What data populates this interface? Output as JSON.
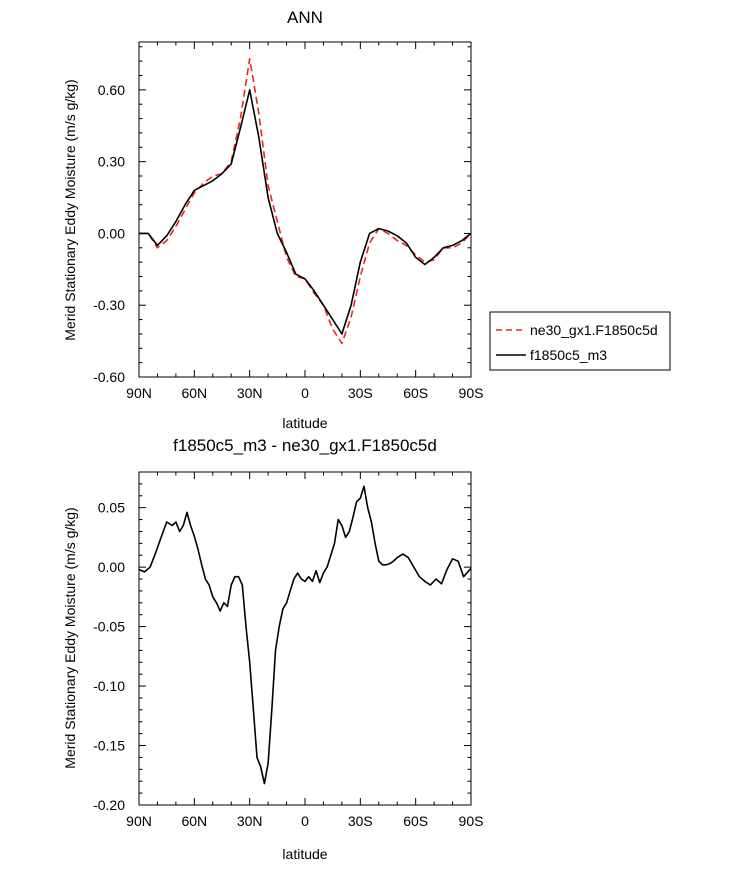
{
  "chart_data": [
    {
      "type": "line",
      "title": "ANN",
      "xlabel": "latitude",
      "ylabel": "Merid Stationary Eddy Moisture (m/s g/kg)",
      "x_ticks": [
        "90N",
        "60N",
        "30N",
        "0",
        "30S",
        "60S",
        "90S"
      ],
      "y_ticks": [
        "0.60",
        "0.30",
        "0.00",
        "-0.30",
        "-0.60"
      ],
      "xlim": [
        90,
        -90
      ],
      "ylim": [
        -0.6,
        0.8
      ],
      "x": [
        90,
        85,
        80,
        75,
        70,
        65,
        60,
        55,
        50,
        45,
        40,
        35,
        30,
        25,
        20,
        15,
        10,
        5,
        0,
        -5,
        -10,
        -15,
        -20,
        -25,
        -30,
        -35,
        -40,
        -45,
        -50,
        -55,
        -60,
        -65,
        -70,
        -75,
        -80,
        -85,
        -90
      ],
      "series": [
        {
          "name": "ne30_gx1.F1850c5d",
          "color": "#e8261f",
          "dash": "dashed",
          "values": [
            0.0,
            0.0,
            -0.06,
            -0.03,
            0.03,
            0.1,
            0.17,
            0.21,
            0.24,
            0.25,
            0.3,
            0.48,
            0.73,
            0.5,
            0.2,
            0.05,
            -0.1,
            -0.18,
            -0.19,
            -0.25,
            -0.3,
            -0.4,
            -0.46,
            -0.35,
            -0.18,
            -0.04,
            0.02,
            0.0,
            -0.03,
            -0.05,
            -0.09,
            -0.12,
            -0.11,
            -0.06,
            -0.06,
            -0.04,
            0.0
          ]
        },
        {
          "name": "f1850c5_m3",
          "color": "#000000",
          "dash": "solid",
          "values": [
            0.0,
            0.0,
            -0.05,
            -0.01,
            0.05,
            0.12,
            0.18,
            0.2,
            0.22,
            0.25,
            0.29,
            0.44,
            0.6,
            0.4,
            0.15,
            0.0,
            -0.08,
            -0.17,
            -0.19,
            -0.24,
            -0.3,
            -0.36,
            -0.42,
            -0.3,
            -0.12,
            0.0,
            0.02,
            0.01,
            -0.01,
            -0.04,
            -0.1,
            -0.13,
            -0.1,
            -0.06,
            -0.05,
            -0.03,
            0.0
          ]
        }
      ],
      "legend": "right"
    },
    {
      "type": "line",
      "title": "f1850c5_m3 - ne30_gx1.F1850c5d",
      "xlabel": "latitude",
      "ylabel": "Merid Stationary Eddy Moisture (m/s g/kg)",
      "x_ticks": [
        "90N",
        "60N",
        "30N",
        "0",
        "30S",
        "60S",
        "90S"
      ],
      "y_ticks": [
        "0.05",
        "0.00",
        "-0.05",
        "-0.10",
        "-0.15",
        "-0.20"
      ],
      "xlim": [
        90,
        -90
      ],
      "ylim": [
        -0.2,
        0.08
      ],
      "x": [
        90,
        87,
        84,
        81,
        78,
        75,
        72,
        70,
        68,
        66,
        64,
        62,
        60,
        58,
        56,
        54,
        52,
        50,
        48,
        46,
        44,
        42,
        40,
        38,
        36,
        34,
        32,
        30,
        28,
        26,
        24,
        22,
        20,
        18,
        16,
        14,
        12,
        10,
        8,
        6,
        4,
        2,
        0,
        -2,
        -4,
        -6,
        -8,
        -10,
        -12,
        -14,
        -16,
        -18,
        -20,
        -22,
        -24,
        -26,
        -28,
        -30,
        -32,
        -34,
        -36,
        -38,
        -40,
        -42,
        -44,
        -46,
        -48,
        -50,
        -53,
        -56,
        -59,
        -62,
        -65,
        -68,
        -71,
        -74,
        -77,
        -80,
        -83,
        -86,
        -90
      ],
      "series": [
        {
          "name": "f1850c5_m3",
          "color": "#000000",
          "dash": "solid",
          "values": [
            -0.002,
            -0.004,
            0.0,
            0.012,
            0.025,
            0.038,
            0.035,
            0.038,
            0.03,
            0.035,
            0.046,
            0.035,
            0.026,
            0.015,
            0.002,
            -0.01,
            -0.015,
            -0.025,
            -0.03,
            -0.037,
            -0.03,
            -0.033,
            -0.015,
            -0.008,
            -0.008,
            -0.015,
            -0.05,
            -0.08,
            -0.12,
            -0.16,
            -0.168,
            -0.182,
            -0.165,
            -0.12,
            -0.07,
            -0.05,
            -0.035,
            -0.03,
            -0.02,
            -0.01,
            -0.005,
            -0.01,
            -0.012,
            -0.008,
            -0.012,
            -0.003,
            -0.013,
            -0.005,
            0.0,
            0.01,
            0.02,
            0.04,
            0.035,
            0.025,
            0.03,
            0.042,
            0.055,
            0.058,
            0.068,
            0.05,
            0.038,
            0.02,
            0.005,
            0.002,
            0.002,
            0.003,
            0.005,
            0.008,
            0.011,
            0.008,
            0.0,
            -0.008,
            -0.012,
            -0.015,
            -0.01,
            -0.014,
            -0.002,
            0.007,
            0.005,
            -0.008,
            -0.001
          ]
        }
      ]
    }
  ]
}
